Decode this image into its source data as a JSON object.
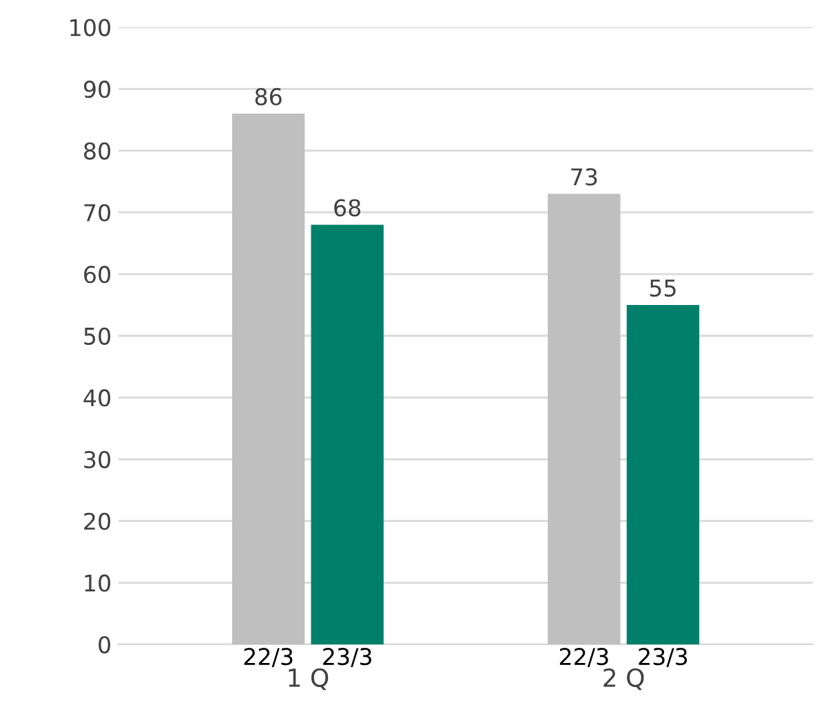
{
  "chart_data": {
    "type": "bar",
    "categories": [
      "1 Q",
      "2 Q"
    ],
    "series": [
      {
        "name": "22/3",
        "color": "#bfbfbf",
        "values": [
          86,
          73
        ]
      },
      {
        "name": "23/3",
        "color": "#00806a",
        "values": [
          68,
          55
        ]
      }
    ],
    "ylim": [
      0,
      100
    ],
    "yticks": [
      0,
      10,
      20,
      30,
      40,
      50,
      60,
      70,
      80,
      90,
      100
    ],
    "grid": "y",
    "data_labels": true,
    "legend": false
  }
}
